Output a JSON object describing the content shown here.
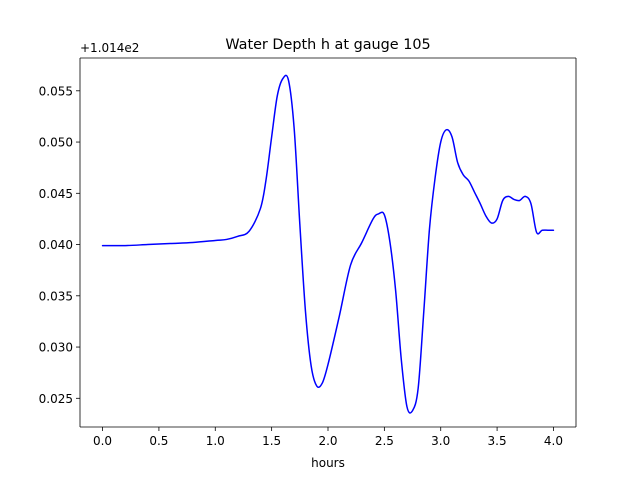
{
  "chart_data": {
    "type": "line",
    "title": "Water Depth h at gauge 105",
    "xlabel": "hours",
    "ylabel": "",
    "y_offset_label": "+1.014e2",
    "y_offset": 101.4,
    "xlim": [
      -0.2,
      4.2
    ],
    "ylim": [
      0.0222,
      0.0582
    ],
    "x_ticks": [
      0.0,
      0.5,
      1.0,
      1.5,
      2.0,
      2.5,
      3.0,
      3.5,
      4.0
    ],
    "x_tick_labels": [
      "0.0",
      "0.5",
      "1.0",
      "1.5",
      "2.0",
      "2.5",
      "3.0",
      "3.5",
      "4.0"
    ],
    "y_ticks": [
      0.025,
      0.03,
      0.035,
      0.04,
      0.045,
      0.05,
      0.055
    ],
    "y_tick_labels": [
      "0.025",
      "0.030",
      "0.035",
      "0.040",
      "0.045",
      "0.050",
      "0.055"
    ],
    "grid": false,
    "series": [
      {
        "color": "#0000ff",
        "x": [
          0.0,
          0.2,
          0.4,
          0.6,
          0.8,
          1.0,
          1.1,
          1.2,
          1.3,
          1.4,
          1.45,
          1.5,
          1.55,
          1.6,
          1.65,
          1.7,
          1.75,
          1.8,
          1.85,
          1.9,
          1.95,
          2.0,
          2.1,
          2.2,
          2.3,
          2.4,
          2.45,
          2.5,
          2.55,
          2.6,
          2.65,
          2.7,
          2.75,
          2.8,
          2.85,
          2.9,
          2.95,
          3.0,
          3.05,
          3.1,
          3.15,
          3.2,
          3.25,
          3.3,
          3.35,
          3.4,
          3.45,
          3.5,
          3.55,
          3.6,
          3.65,
          3.7,
          3.75,
          3.8,
          3.85,
          3.9,
          3.95,
          4.0
        ],
        "y": [
          0.0399,
          0.0399,
          0.04,
          0.0401,
          0.0402,
          0.0404,
          0.0405,
          0.0408,
          0.0413,
          0.0435,
          0.0463,
          0.0505,
          0.0545,
          0.0562,
          0.056,
          0.0513,
          0.042,
          0.0335,
          0.0282,
          0.0262,
          0.0265,
          0.0283,
          0.033,
          0.038,
          0.0402,
          0.0425,
          0.043,
          0.0429,
          0.0402,
          0.0355,
          0.0288,
          0.0242,
          0.0238,
          0.026,
          0.0335,
          0.0415,
          0.0465,
          0.05,
          0.0512,
          0.0505,
          0.048,
          0.0468,
          0.0462,
          0.0451,
          0.044,
          0.0428,
          0.0421,
          0.0425,
          0.0443,
          0.0447,
          0.0444,
          0.0443,
          0.0447,
          0.044,
          0.0412,
          0.0414,
          0.0414,
          0.0414
        ]
      }
    ]
  }
}
